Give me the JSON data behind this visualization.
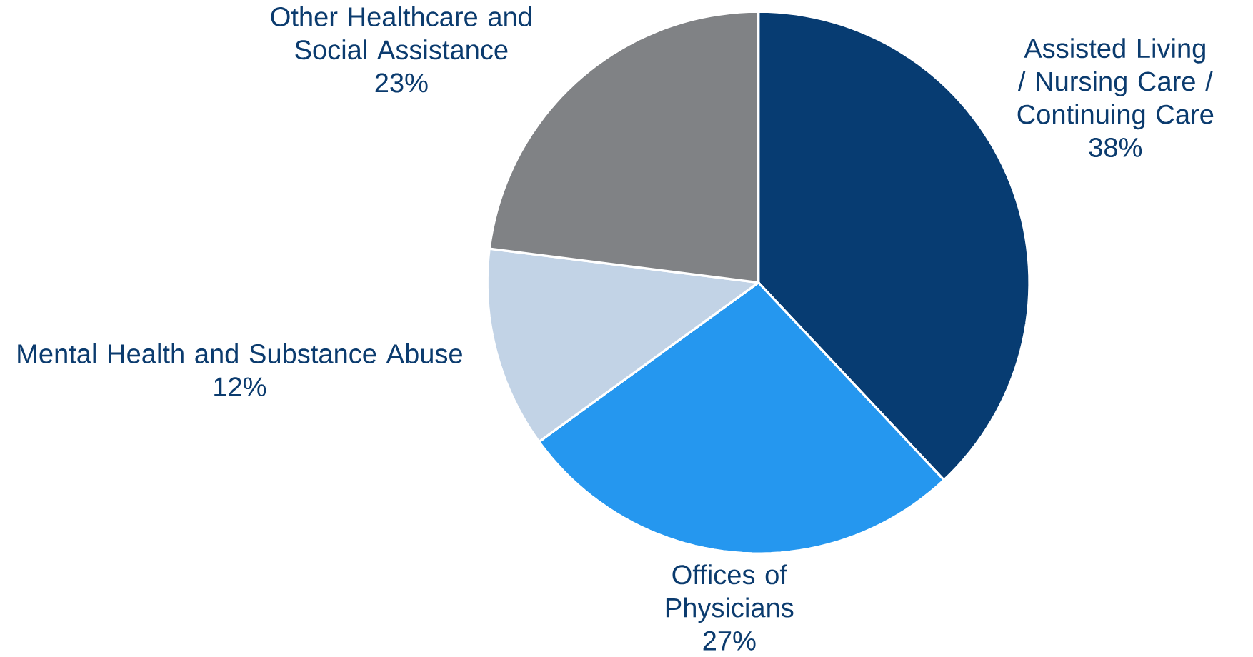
{
  "chart_data": {
    "type": "pie",
    "categories": [
      "Assisted Living / Nursing Care / Continuing Care",
      "Offices of Physicians",
      "Mental Health and Substance Abuse",
      "Other Healthcare and Social Assistance"
    ],
    "values": [
      38,
      27,
      12,
      23
    ],
    "value_labels": [
      "38%",
      "27%",
      "12%",
      "23%"
    ],
    "colors": [
      "#073c72",
      "#2597ef",
      "#c2d3e6",
      "#808285"
    ]
  }
}
